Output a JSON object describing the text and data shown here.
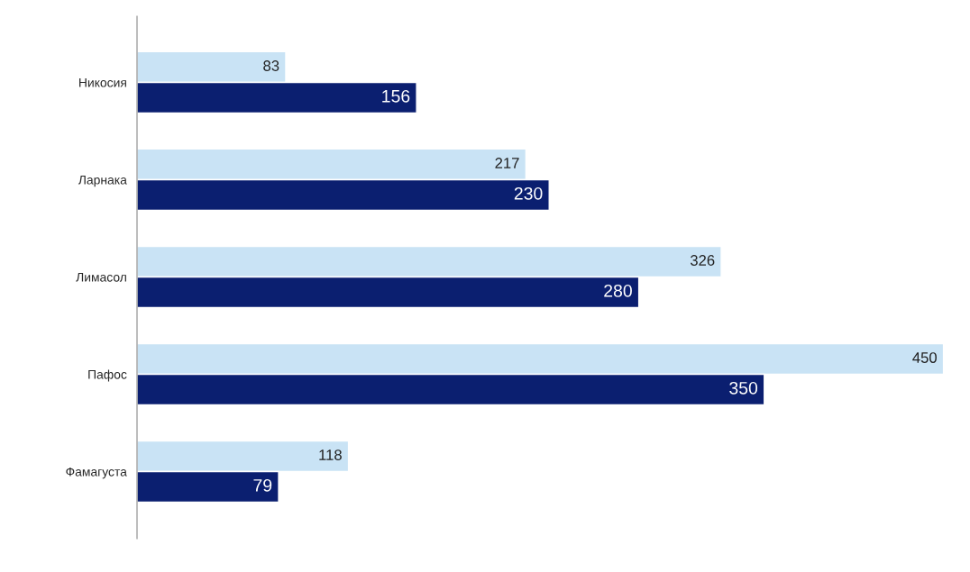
{
  "chart_data": {
    "type": "bar",
    "orientation": "horizontal",
    "categories": [
      "Никосия",
      "Ларнака",
      "Лимасол",
      "Пафос",
      "Фамагуста"
    ],
    "series": [
      {
        "color": "#c9e3f5",
        "values": [
          83,
          217,
          326,
          450,
          118
        ]
      },
      {
        "color": "#0b1f70",
        "values": [
          156,
          230,
          280,
          350,
          79
        ]
      }
    ],
    "data_labels": true,
    "grid": false,
    "legend": false
  }
}
